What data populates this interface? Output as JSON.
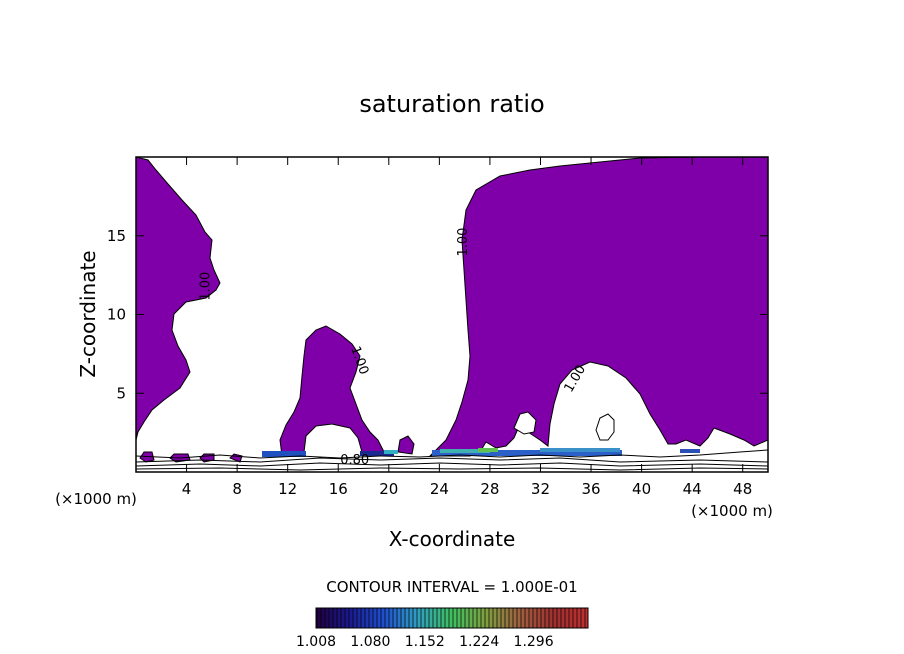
{
  "chart_data": {
    "type": "contour",
    "title": "saturation ratio",
    "xlabel": "X-coordinate",
    "ylabel": "Z-coordinate",
    "x_unit_left": "(×1000 m)",
    "x_unit_right": "(×1000 m)",
    "xlim": [
      0,
      50
    ],
    "ylim": [
      0,
      20
    ],
    "x_ticks": [
      4,
      8,
      12,
      16,
      20,
      24,
      28,
      32,
      36,
      40,
      44,
      48
    ],
    "y_ticks": [
      5,
      10,
      15
    ],
    "contour_interval_text": "CONTOUR INTERVAL = 1.000E-01",
    "contour_labels": [
      {
        "text": "1.00",
        "x": 5.8,
        "y": 11.8,
        "rotate": -90
      },
      {
        "text": "1.00",
        "x": 17.4,
        "y": 7.0,
        "rotate": 70
      },
      {
        "text": "1.00",
        "x": 26.2,
        "y": 14.6,
        "rotate": -90
      },
      {
        "text": "1.00",
        "x": 35.0,
        "y": 5.8,
        "rotate": -60
      },
      {
        "text": "0.80",
        "x": 17.3,
        "y": 0.5,
        "rotate": 0
      }
    ],
    "fill_color": "#7f00a8",
    "colorbar": {
      "tick_labels": [
        "1.008",
        "1.080",
        "1.152",
        "1.224",
        "1.296"
      ],
      "stops": [
        "#220040",
        "#1a1a90",
        "#2050d0",
        "#30a0c0",
        "#40c060",
        "#80a040",
        "#a06040",
        "#a03030",
        "#c03030"
      ]
    }
  }
}
